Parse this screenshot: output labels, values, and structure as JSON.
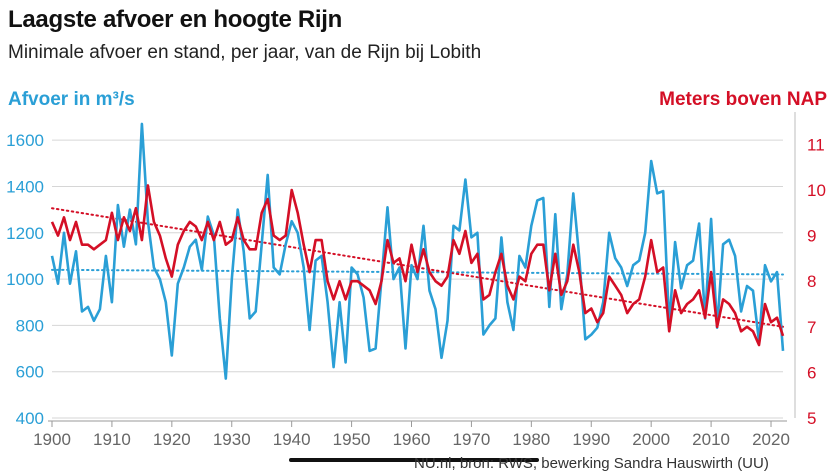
{
  "title": "Laagste afvoer en hoogte Rijn",
  "subtitle": "Minimale afvoer en stand, per jaar, van de Rijn bij Lobith",
  "credit": "NU.nl, bron: RWS, bewerking Sandra Hauswirth (UU)",
  "colors": {
    "afvoer": "#2a9fd6",
    "stand": "#d40f26"
  },
  "chart_data": {
    "type": "line",
    "title": "Laagste afvoer en hoogte Rijn",
    "subtitle": "Minimale afvoer en stand, per jaar, van de Rijn bij Lobith",
    "xlabel": "",
    "ylabel_left": "Afvoer in m³/s",
    "ylabel_right": "Meters boven NAP",
    "xlim": [
      1900,
      2022
    ],
    "ylim_left": [
      400,
      1700
    ],
    "ylim_right": [
      5,
      11.6
    ],
    "x_ticks": [
      1900,
      1910,
      1920,
      1930,
      1940,
      1950,
      1960,
      1970,
      1980,
      1990,
      2000,
      2010,
      2020
    ],
    "y_ticks_left": [
      400,
      600,
      800,
      1000,
      1200,
      1400,
      1600
    ],
    "y_ticks_right": [
      5,
      6,
      7,
      8,
      9,
      10,
      11
    ],
    "grid": true,
    "x": [
      1900,
      1901,
      1902,
      1903,
      1904,
      1905,
      1906,
      1907,
      1908,
      1909,
      1910,
      1911,
      1912,
      1913,
      1914,
      1915,
      1916,
      1917,
      1918,
      1919,
      1920,
      1921,
      1922,
      1923,
      1924,
      1925,
      1926,
      1927,
      1928,
      1929,
      1930,
      1931,
      1932,
      1933,
      1934,
      1935,
      1936,
      1937,
      1938,
      1939,
      1940,
      1941,
      1942,
      1943,
      1944,
      1945,
      1946,
      1947,
      1948,
      1949,
      1950,
      1951,
      1952,
      1953,
      1954,
      1955,
      1956,
      1957,
      1958,
      1959,
      1960,
      1961,
      1962,
      1963,
      1964,
      1965,
      1966,
      1967,
      1968,
      1969,
      1970,
      1971,
      1972,
      1973,
      1974,
      1975,
      1976,
      1977,
      1978,
      1979,
      1980,
      1981,
      1982,
      1983,
      1984,
      1985,
      1986,
      1987,
      1988,
      1989,
      1990,
      1991,
      1992,
      1993,
      1994,
      1995,
      1996,
      1997,
      1998,
      1999,
      2000,
      2001,
      2002,
      2003,
      2004,
      2005,
      2006,
      2007,
      2008,
      2009,
      2010,
      2011,
      2012,
      2013,
      2014,
      2015,
      2016,
      2017,
      2018,
      2019,
      2020,
      2021,
      2022
    ],
    "series": [
      {
        "name": "Afvoer in m³/s",
        "axis": "left",
        "values": [
          1100,
          980,
          1200,
          980,
          1120,
          860,
          880,
          820,
          870,
          1100,
          900,
          1320,
          1140,
          1300,
          1150,
          1670,
          1250,
          1050,
          1000,
          900,
          670,
          980,
          1050,
          1140,
          1170,
          1040,
          1270,
          1190,
          830,
          570,
          1000,
          1300,
          1120,
          830,
          860,
          1150,
          1450,
          1050,
          1020,
          1150,
          1250,
          1200,
          1050,
          780,
          1080,
          1100,
          900,
          620,
          900,
          640,
          1050,
          1020,
          920,
          690,
          700,
          1000,
          1310,
          1000,
          1050,
          700,
          1060,
          1000,
          1230,
          950,
          870,
          660,
          820,
          1230,
          1210,
          1430,
          1180,
          1200,
          760,
          800,
          830,
          1180,
          900,
          780,
          1100,
          1050,
          1230,
          1340,
          1350,
          880,
          1280,
          870,
          1020,
          1370,
          1090,
          740,
          760,
          790,
          900,
          1200,
          1090,
          1050,
          970,
          1060,
          1080,
          1200,
          1510,
          1370,
          1380,
          800,
          1160,
          960,
          1060,
          1080,
          1240,
          830,
          1260,
          790,
          1150,
          1170,
          1100,
          860,
          970,
          950,
          730,
          1060,
          990,
          1030,
          690
        ]
      },
      {
        "name": "Meters boven NAP",
        "axis": "right",
        "values": [
          9.3,
          9.0,
          9.4,
          8.9,
          9.3,
          8.8,
          8.8,
          8.7,
          8.8,
          8.9,
          9.5,
          8.9,
          9.4,
          9.1,
          9.6,
          8.9,
          10.1,
          9.3,
          9.0,
          8.5,
          8.1,
          8.8,
          9.1,
          9.3,
          9.2,
          8.9,
          9.3,
          8.9,
          9.3,
          8.8,
          8.9,
          9.4,
          8.9,
          8.7,
          8.7,
          9.5,
          9.8,
          9.0,
          8.9,
          9.0,
          10.0,
          9.5,
          8.8,
          8.2,
          8.9,
          8.9,
          8.0,
          7.6,
          8.0,
          7.6,
          8.0,
          8.0,
          7.9,
          7.8,
          7.5,
          8.0,
          8.9,
          8.4,
          8.5,
          8.0,
          8.8,
          8.2,
          8.7,
          8.2,
          8.0,
          7.9,
          8.1,
          8.9,
          8.6,
          9.1,
          8.4,
          8.6,
          7.6,
          7.7,
          8.2,
          8.6,
          7.9,
          7.6,
          8.1,
          8.0,
          8.6,
          8.8,
          8.8,
          7.8,
          8.6,
          7.7,
          8.0,
          8.8,
          8.2,
          7.3,
          7.4,
          7.1,
          7.3,
          8.1,
          7.9,
          7.7,
          7.3,
          7.5,
          7.6,
          8.1,
          8.9,
          8.2,
          8.3,
          6.9,
          7.8,
          7.3,
          7.5,
          7.6,
          7.8,
          7.2,
          8.2,
          7.0,
          7.6,
          7.5,
          7.3,
          6.9,
          7.0,
          6.9,
          6.6,
          7.5,
          7.1,
          7.2,
          6.8
        ]
      }
    ],
    "trendlines": [
      {
        "series": "Afvoer in m³/s",
        "axis": "left",
        "style": "dotted",
        "x": [
          1900,
          2022
        ],
        "y": [
          1040,
          1020
        ]
      },
      {
        "series": "Meters boven NAP",
        "axis": "right",
        "style": "dotted",
        "x": [
          1900,
          2022
        ],
        "y": [
          9.6,
          7.0
        ]
      }
    ]
  }
}
